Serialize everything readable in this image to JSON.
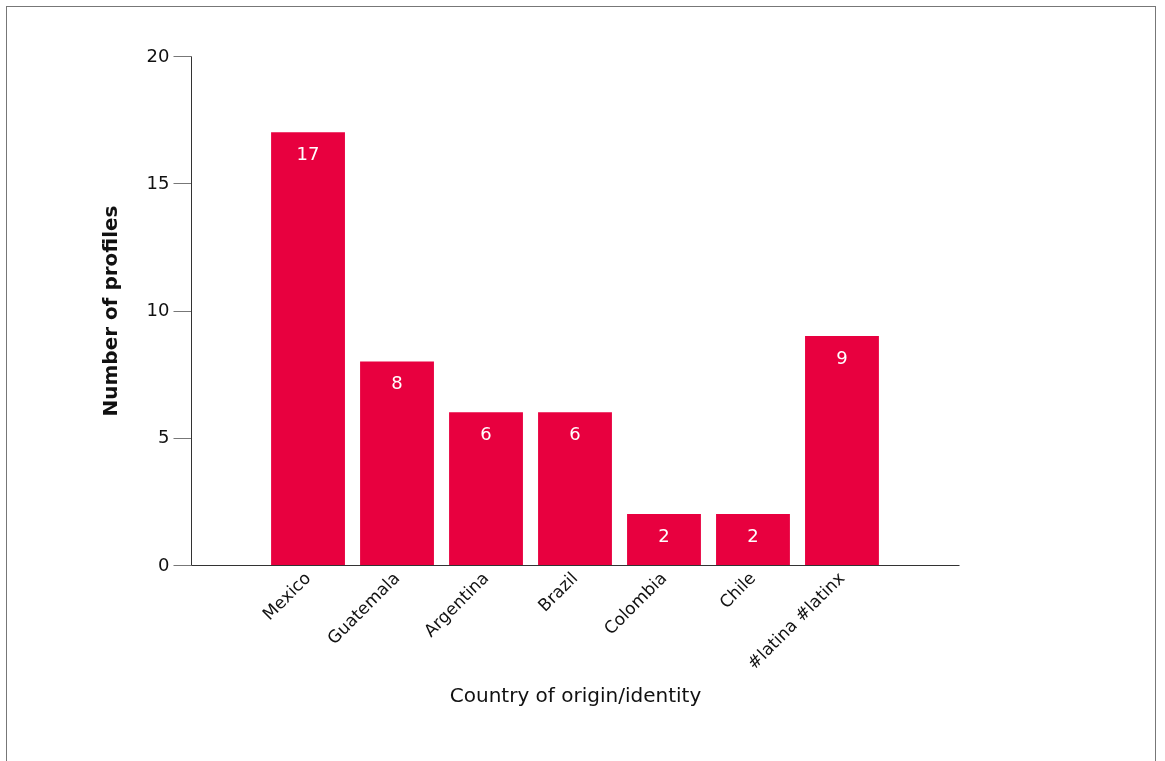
{
  "chart_data": {
    "type": "bar",
    "xlabel": "Country of origin/identity",
    "ylabel": "Number of profiles",
    "categories": [
      "Mexico",
      "Guatemala",
      "Argentina",
      "Brazil",
      "Colombia",
      "Chile",
      "#latina #latinx"
    ],
    "values": [
      17,
      8,
      6,
      6,
      2,
      2,
      9
    ],
    "color": "#e8003f",
    "ylim": [
      0,
      20
    ],
    "yticks": [
      0,
      5,
      10,
      15,
      20
    ],
    "grid": false,
    "data_labels": true
  }
}
